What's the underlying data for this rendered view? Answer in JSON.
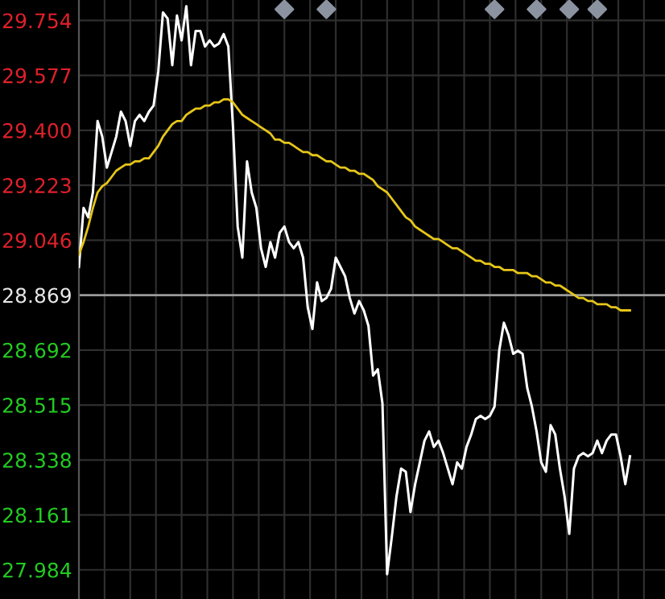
{
  "chart_data": {
    "type": "line",
    "categories": [
      null,
      null,
      null,
      null,
      null,
      null,
      null,
      null,
      null,
      null,
      null,
      null,
      null,
      null,
      null,
      null,
      null,
      null,
      null,
      null,
      null,
      null,
      null,
      null,
      null,
      null,
      null,
      null,
      null,
      null,
      null,
      null,
      null,
      null,
      null,
      null,
      null,
      null,
      null,
      null,
      null,
      null,
      null,
      null,
      null,
      null,
      null,
      null,
      null,
      null,
      null,
      null,
      null,
      null,
      null,
      null,
      null,
      null,
      null,
      null,
      null,
      null,
      null,
      null,
      null,
      null,
      null,
      null,
      null,
      null,
      null,
      null,
      null,
      null,
      null,
      null,
      null,
      null,
      null,
      null,
      null,
      null,
      null,
      null,
      null,
      null,
      null,
      null,
      null,
      null,
      null,
      null,
      null,
      null,
      null,
      null,
      null,
      null,
      null,
      null,
      null,
      null,
      null,
      null,
      null,
      null,
      null,
      null,
      null,
      null,
      null,
      null,
      null,
      null,
      null,
      null,
      null,
      null,
      null,
      null,
      null,
      null,
      null,
      null,
      null,
      null
    ],
    "series": [
      {
        "color": "#ffffff",
        "values": [
          28.96,
          29.15,
          29.12,
          29.2,
          29.43,
          29.38,
          29.28,
          29.33,
          29.38,
          29.46,
          29.43,
          29.35,
          29.43,
          29.45,
          29.43,
          29.46,
          29.48,
          29.59,
          29.78,
          29.76,
          29.61,
          29.77,
          29.69,
          29.8,
          29.61,
          29.72,
          29.72,
          29.67,
          29.69,
          29.67,
          29.68,
          29.71,
          29.67,
          29.41,
          29.09,
          28.99,
          29.3,
          29.2,
          29.15,
          29.02,
          28.96,
          29.04,
          28.99,
          29.07,
          29.09,
          29.04,
          29.02,
          29.04,
          28.99,
          28.83,
          28.76,
          28.91,
          28.85,
          28.86,
          28.89,
          28.99,
          28.96,
          28.93,
          28.86,
          28.81,
          28.85,
          28.82,
          28.77,
          28.61,
          28.63,
          28.52,
          27.97,
          28.09,
          28.22,
          28.31,
          28.3,
          28.17,
          28.26,
          28.33,
          28.4,
          28.43,
          28.38,
          28.4,
          28.36,
          28.31,
          28.26,
          28.33,
          28.31,
          28.38,
          28.42,
          28.47,
          28.48,
          28.47,
          28.48,
          28.51,
          28.69,
          28.78,
          28.74,
          28.68,
          28.69,
          28.68,
          28.57,
          28.51,
          28.43,
          28.33,
          28.3,
          28.45,
          28.42,
          28.31,
          28.22,
          28.1,
          28.31,
          28.35,
          28.36,
          28.35,
          28.36,
          28.4,
          28.36,
          28.4,
          28.42,
          28.42,
          28.35,
          28.26,
          28.35,
          null,
          null,
          null,
          null,
          null,
          null,
          null
        ]
      },
      {
        "color": "#e6c619",
        "values": [
          29.0,
          29.04,
          29.09,
          29.15,
          29.2,
          29.22,
          29.23,
          29.25,
          29.27,
          29.28,
          29.29,
          29.29,
          29.3,
          29.3,
          29.31,
          29.31,
          29.33,
          29.35,
          29.38,
          29.4,
          29.42,
          29.43,
          29.43,
          29.45,
          29.46,
          29.47,
          29.47,
          29.48,
          29.48,
          29.49,
          29.49,
          29.5,
          29.5,
          29.49,
          29.47,
          29.45,
          29.44,
          29.43,
          29.42,
          29.41,
          29.4,
          29.39,
          29.37,
          29.37,
          29.36,
          29.36,
          29.35,
          29.34,
          29.33,
          29.33,
          29.32,
          29.32,
          29.31,
          29.3,
          29.3,
          29.29,
          29.28,
          29.28,
          29.27,
          29.27,
          29.26,
          29.26,
          29.25,
          29.24,
          29.22,
          29.21,
          29.2,
          29.18,
          29.16,
          29.14,
          29.12,
          29.11,
          29.09,
          29.08,
          29.07,
          29.06,
          29.05,
          29.05,
          29.04,
          29.03,
          29.02,
          29.02,
          29.01,
          29.0,
          28.99,
          28.98,
          28.98,
          28.97,
          28.97,
          28.96,
          28.96,
          28.95,
          28.95,
          28.95,
          28.94,
          28.94,
          28.94,
          28.93,
          28.93,
          28.92,
          28.91,
          28.91,
          28.9,
          28.9,
          28.89,
          28.88,
          28.87,
          28.86,
          28.86,
          28.85,
          28.85,
          28.84,
          28.84,
          28.84,
          28.83,
          28.83,
          28.82,
          28.82,
          28.82,
          null,
          null,
          null,
          null,
          null,
          null,
          null
        ]
      },
      {
        "type": "scatter",
        "marker": "diamond",
        "color": "#8c93a0",
        "values": [
          null,
          null,
          null,
          null,
          null,
          null,
          null,
          null,
          null,
          null,
          null,
          null,
          null,
          null,
          null,
          null,
          null,
          null,
          null,
          null,
          null,
          null,
          null,
          null,
          null,
          null,
          null,
          null,
          null,
          null,
          null,
          null,
          null,
          null,
          null,
          null,
          null,
          null,
          null,
          null,
          null,
          null,
          null,
          null,
          29.79,
          null,
          null,
          null,
          null,
          null,
          null,
          null,
          null,
          29.79,
          null,
          null,
          null,
          null,
          null,
          null,
          null,
          null,
          null,
          null,
          null,
          null,
          null,
          null,
          null,
          null,
          null,
          null,
          null,
          null,
          null,
          null,
          null,
          null,
          null,
          null,
          null,
          null,
          null,
          null,
          null,
          null,
          null,
          null,
          null,
          29.79,
          null,
          null,
          null,
          null,
          null,
          null,
          null,
          null,
          29.79,
          null,
          null,
          null,
          null,
          null,
          null,
          29.79,
          null,
          null,
          null,
          null,
          null,
          29.79,
          null,
          null,
          null,
          null,
          null,
          null,
          null,
          null,
          null,
          null,
          null,
          null,
          null,
          null
        ]
      }
    ],
    "ylim": [
      27.89,
      29.82
    ],
    "yticks": [
      27.984,
      28.161,
      28.338,
      28.515,
      28.692,
      28.869,
      29.046,
      29.223,
      {
        "value": 29.4,
        "label": "29.400"
      },
      29.577,
      29.754
    ],
    "ref_lines": [
      {
        "axis": "y",
        "value": 28.869,
        "color": "#9a9a9a"
      }
    ],
    "grid": true,
    "marker": "none",
    "line_style": "solid"
  }
}
